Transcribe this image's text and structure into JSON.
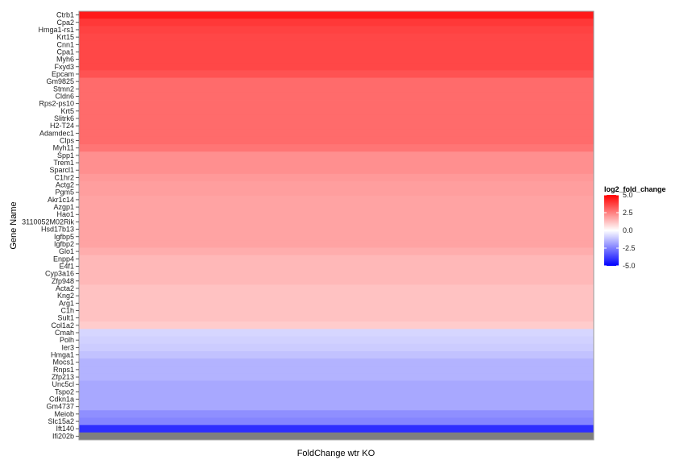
{
  "chart_data": {
    "type": "heatmap",
    "xlabel": "FoldChange wtr KO",
    "ylabel": "Gene Name",
    "legend": {
      "title": "log2_fold_change",
      "ticks": [
        5.0,
        2.5,
        0.0,
        -2.5,
        -5.0
      ],
      "tick_labels": [
        "5.0",
        "2.5",
        "0.0",
        "-2.5",
        "-5.0"
      ],
      "placement": "right",
      "low_color": "#0000ff",
      "mid_color": "#ffffff",
      "high_color": "#ff0000",
      "na_color": "#7f7f7f"
    },
    "limits": [
      -5,
      5
    ],
    "genes": [
      {
        "name": "Ctrb1",
        "value": 4.5
      },
      {
        "name": "Cpa2",
        "value": 3.9
      },
      {
        "name": "Hmga1-rs1",
        "value": 3.7
      },
      {
        "name": "Krt15",
        "value": 3.6
      },
      {
        "name": "Cnn1",
        "value": 3.6
      },
      {
        "name": "Cpa1",
        "value": 3.6
      },
      {
        "name": "Myh6",
        "value": 3.6
      },
      {
        "name": "Fxyd3",
        "value": 3.6
      },
      {
        "name": "Epcam",
        "value": 3.4
      },
      {
        "name": "Gm9825",
        "value": 2.9
      },
      {
        "name": "Stmn2",
        "value": 2.9
      },
      {
        "name": "Cldn6",
        "value": 2.9
      },
      {
        "name": "Rps2-ps10",
        "value": 2.9
      },
      {
        "name": "Krt5",
        "value": 2.9
      },
      {
        "name": "Slitrk6",
        "value": 2.9
      },
      {
        "name": "H2-T24",
        "value": 2.9
      },
      {
        "name": "Adamdec1",
        "value": 2.9
      },
      {
        "name": "Clps",
        "value": 2.9
      },
      {
        "name": "Myh11",
        "value": 2.7
      },
      {
        "name": "Spp1",
        "value": 2.2
      },
      {
        "name": "Trem1",
        "value": 2.2
      },
      {
        "name": "Sparcl1",
        "value": 2.2
      },
      {
        "name": "C1hr2",
        "value": 2.0
      },
      {
        "name": "Actg2",
        "value": 1.9
      },
      {
        "name": "Pgm5",
        "value": 1.9
      },
      {
        "name": "Akr1c14",
        "value": 1.8
      },
      {
        "name": "Azgp1",
        "value": 1.8
      },
      {
        "name": "Hao1",
        "value": 1.8
      },
      {
        "name": "3110052M02Rik",
        "value": 1.8
      },
      {
        "name": "Hsd17b13",
        "value": 1.8
      },
      {
        "name": "Igfbp5",
        "value": 1.8
      },
      {
        "name": "Igfbp2",
        "value": 1.8
      },
      {
        "name": "Glo1",
        "value": 1.6
      },
      {
        "name": "Enpp4",
        "value": 1.4
      },
      {
        "name": "E4f1",
        "value": 1.4
      },
      {
        "name": "Cyp3a16",
        "value": 1.4
      },
      {
        "name": "Zfp948",
        "value": 1.4
      },
      {
        "name": "Acta2",
        "value": 1.2
      },
      {
        "name": "Kng2",
        "value": 1.2
      },
      {
        "name": "Arg1",
        "value": 1.2
      },
      {
        "name": "C1h",
        "value": 1.2
      },
      {
        "name": "Sult1",
        "value": 1.2
      },
      {
        "name": "Col1a2",
        "value": 1.0
      },
      {
        "name": "Cmah",
        "value": -0.8
      },
      {
        "name": "Polh",
        "value": -0.9
      },
      {
        "name": "Ier3",
        "value": -1.0
      },
      {
        "name": "Hmga1",
        "value": -1.2
      },
      {
        "name": "Mocs1",
        "value": -1.5
      },
      {
        "name": "Rnps1",
        "value": -1.5
      },
      {
        "name": "Zfp213",
        "value": -1.5
      },
      {
        "name": "Unc5cl",
        "value": -1.7
      },
      {
        "name": "Tspo2",
        "value": -1.7
      },
      {
        "name": "Cdkn1a",
        "value": -1.7
      },
      {
        "name": "Gm4737",
        "value": -1.7
      },
      {
        "name": "Meiob",
        "value": -2.2
      },
      {
        "name": "Slc15a2",
        "value": -2.4
      },
      {
        "name": "Ift140",
        "value": -4.1
      },
      {
        "name": "Ifi202b",
        "value": null
      }
    ]
  }
}
